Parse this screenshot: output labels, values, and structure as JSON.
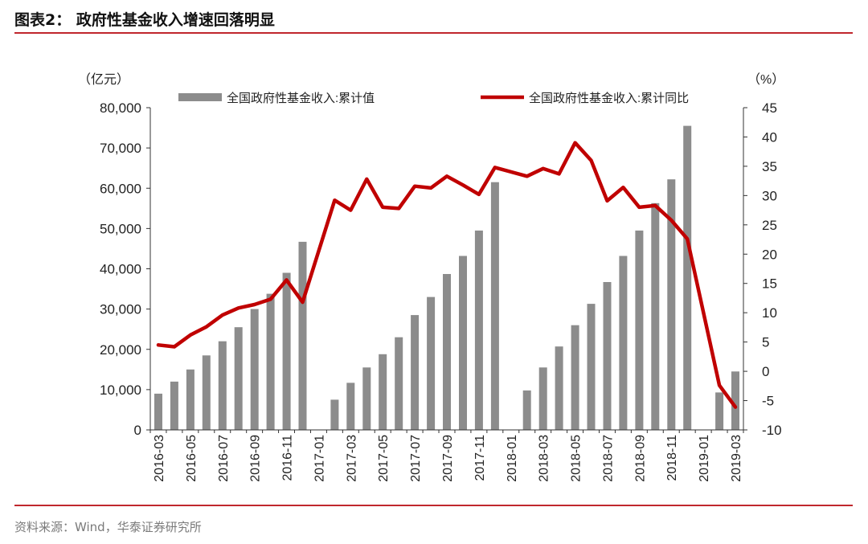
{
  "header": {
    "title": "图表2：  政府性基金收入增速回落明显"
  },
  "footer": {
    "source": "资料来源：Wind，华泰证券研究所"
  },
  "chart_data": {
    "type": "bar+line",
    "y_left_unit": "（亿元）",
    "y_right_unit": "（%）",
    "y_left_range": [
      0,
      80000
    ],
    "y_right_range": [
      -10,
      45
    ],
    "y_left_ticks": [
      "0",
      "10,000",
      "20,000",
      "30,000",
      "40,000",
      "50,000",
      "60,000",
      "70,000",
      "80,000"
    ],
    "y_right_ticks": [
      "-10",
      "-5",
      "0",
      "5",
      "10",
      "15",
      "20",
      "25",
      "30",
      "35",
      "40",
      "45"
    ],
    "grid": false,
    "legend_placement": "top",
    "x_tick_labels": [
      "2016-03",
      "2016-05",
      "2016-07",
      "2016-09",
      "2016-11",
      "2017-01",
      "2017-03",
      "2017-05",
      "2017-07",
      "2017-09",
      "2017-11",
      "2018-01",
      "2018-03",
      "2018-05",
      "2018-07",
      "2018-09",
      "2018-11",
      "2019-01",
      "2019-03"
    ],
    "x_tick_every": 2,
    "categories": [
      "2016-03",
      "2016-04",
      "2016-05",
      "2016-06",
      "2016-07",
      "2016-08",
      "2016-09",
      "2016-10",
      "2016-11",
      "2016-12",
      "2017-01",
      "2017-02",
      "2017-03",
      "2017-04",
      "2017-05",
      "2017-06",
      "2017-07",
      "2017-08",
      "2017-09",
      "2017-10",
      "2017-11",
      "2017-12",
      "2018-01",
      "2018-02",
      "2018-03",
      "2018-04",
      "2018-05",
      "2018-06",
      "2018-07",
      "2018-08",
      "2018-09",
      "2018-10",
      "2018-11",
      "2018-12",
      "2019-01",
      "2019-02",
      "2019-03"
    ],
    "series": [
      {
        "name": "全国政府性基金收入:累计值",
        "type": "bar",
        "axis": "left",
        "color": "#8c8c8c",
        "values": [
          9000,
          12000,
          15000,
          18500,
          22000,
          25500,
          30000,
          33800,
          39000,
          46700,
          null,
          7500,
          11700,
          15500,
          18800,
          23000,
          28500,
          33000,
          38700,
          43200,
          49500,
          61500,
          null,
          9800,
          15500,
          20700,
          26000,
          31300,
          36700,
          43200,
          49500,
          56300,
          62200,
          75500,
          null,
          9300,
          14500
        ]
      },
      {
        "name": "全国政府性基金收入:累计同比",
        "type": "line",
        "axis": "right",
        "color": "#c00000",
        "values": [
          4.5,
          4.2,
          6.2,
          7.6,
          9.6,
          10.8,
          11.4,
          12.3,
          15.6,
          11.8,
          null,
          29.2,
          27.5,
          32.8,
          28.0,
          27.8,
          31.6,
          31.3,
          33.3,
          31.8,
          30.2,
          34.8,
          null,
          33.3,
          34.6,
          33.7,
          39.0,
          36.0,
          29.1,
          31.4,
          28.0,
          28.3,
          25.8,
          22.6,
          null,
          -2.4,
          -6.1
        ]
      }
    ]
  }
}
